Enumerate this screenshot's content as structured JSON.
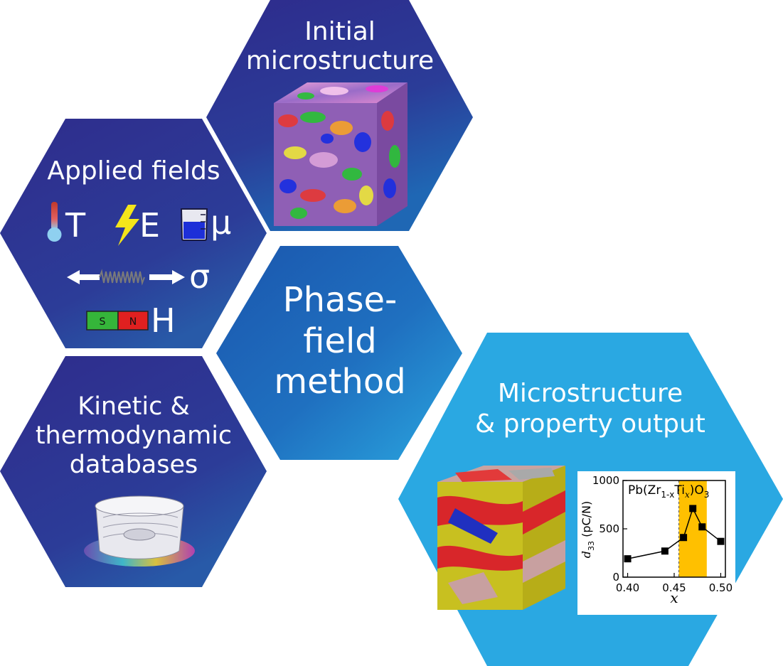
{
  "hexagons": {
    "initial": {
      "line1": "Initial",
      "line2": "microstructure"
    },
    "applied": {
      "title": "Applied fields",
      "symbols": {
        "temperature": "T",
        "electric": "E",
        "chemical": "μ",
        "stress": "σ",
        "magnetic": "H"
      },
      "magnet": {
        "south": "S",
        "north": "N"
      }
    },
    "kinetic": {
      "line1": "Kinetic &",
      "line2": "thermodynamic",
      "line3": "databases"
    },
    "phase": {
      "line1": "Phase-",
      "line2": "field",
      "line3": "method"
    },
    "output": {
      "line1": "Microstructure",
      "line2": "& property output"
    }
  },
  "icons": [
    "thermometer-icon",
    "lightning-icon",
    "beaker-icon",
    "spring-arrow-icon",
    "magnet-icon",
    "grain-cube",
    "free-energy-surface"
  ],
  "colors": {
    "dark_hex": "#2d2f8e",
    "mid_hex": "#1f6dc0",
    "light_hex": "#2aa8e2",
    "highlight": "#ffc000"
  },
  "chart_data": {
    "type": "line",
    "title": "Pb(Zr1-xTix)O3",
    "title_parts": {
      "base": "Pb(Zr",
      "sub1": "1-x",
      "mid": "Ti",
      "sub2": "x",
      "end": ")O",
      "sub3": "3"
    },
    "xlabel": "x",
    "ylabel": "d33 (pC/N)",
    "ylabel_parts": {
      "base": "d",
      "sub": "33",
      "unit": "(pC/N)"
    },
    "xlim": [
      0.395,
      0.505
    ],
    "ylim": [
      0,
      1000
    ],
    "xticks": [
      "0.40",
      "0.45",
      "0.50"
    ],
    "yticks": [
      "0",
      "500",
      "1000"
    ],
    "highlight_range": [
      0.455,
      0.485
    ],
    "x": [
      0.4,
      0.44,
      0.46,
      0.47,
      0.48,
      0.5
    ],
    "y": [
      190,
      270,
      410,
      710,
      520,
      370
    ]
  }
}
